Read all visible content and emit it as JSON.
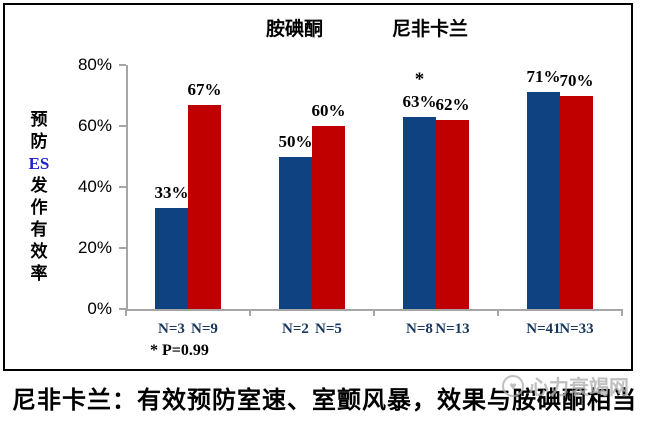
{
  "legend": {
    "items": [
      {
        "label": "胺碘酮"
      },
      {
        "label": "尼非卡兰"
      }
    ]
  },
  "chart_data": {
    "type": "bar",
    "title": "",
    "categories": [
      "",
      "",
      "",
      ""
    ],
    "series": [
      {
        "name": "胺碘酮",
        "color": "#0e4280",
        "values": [
          33,
          50,
          63,
          71
        ],
        "n_labels": [
          "N=3",
          "N=2",
          "N=8",
          "N=41"
        ]
      },
      {
        "name": "尼非卡兰",
        "color": "#c00000",
        "values": [
          67,
          60,
          62,
          70
        ],
        "n_labels": [
          "N=9",
          "N=5",
          "N=13",
          "N=33"
        ]
      }
    ],
    "unit": "%",
    "ylim": [
      0,
      80
    ],
    "y_ticks": [
      "0%",
      "20%",
      "40%",
      "60%",
      "80%"
    ],
    "grid": false,
    "legend_position": "top",
    "axis_color": "#a6a6a6",
    "n_label_color": "#17375e",
    "ylabel": "预防ES发作有效率",
    "ylabel_lines": [
      "预",
      "防",
      "ES",
      "发",
      "作",
      "有",
      "效",
      "率"
    ],
    "ylabel_highlight": "ES",
    "ylabel_highlight_color": "#2323cd",
    "annotation": {
      "symbol": "*",
      "series_index": 0,
      "group_index": 2
    },
    "footnote": "* P=0.99"
  },
  "caption": {
    "text": "尼非卡兰：有效预防室速、室颤风暴，效果与胺碘酮相当"
  },
  "watermark": {
    "text": "心力衰竭网",
    "icon_glyph": "♥"
  }
}
